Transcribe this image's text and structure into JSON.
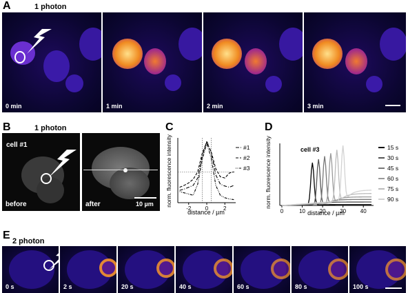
{
  "panels": {
    "A": {
      "letter": "A",
      "title": "1 photon",
      "times": [
        "0 min",
        "1 min",
        "2 min",
        "3 min"
      ]
    },
    "B": {
      "letter": "B",
      "title": "1 photon",
      "cell": "cell #1",
      "before": "before",
      "after": "after",
      "scale": "10 µm"
    },
    "C": {
      "letter": "C",
      "ylabel": "norm. fluorescence intensity",
      "xlabel": "distance / µm",
      "legend": [
        "#1",
        "#2",
        "#3"
      ]
    },
    "D": {
      "letter": "D",
      "ylabel": "norm. fluorescence intensity",
      "xlabel": "distance / µm",
      "cell": "cell #3",
      "legend": [
        "15 s",
        "30 s",
        "45 s",
        "60 s",
        "75 s",
        "90 s"
      ]
    },
    "E": {
      "letter": "E",
      "title": "2 photon",
      "times": [
        "0 s",
        "2 s",
        "20 s",
        "40 s",
        "60 s",
        "80 s",
        "100 s"
      ]
    }
  },
  "chart_data": [
    {
      "type": "line",
      "xlabel": "distance / µm",
      "ylabel": "norm. fluorescence intensity",
      "xticks": [
        -2,
        0,
        2
      ],
      "xlim": [
        -3.2,
        3.2
      ],
      "ylim": [
        0,
        105
      ],
      "series": [
        {
          "name": "#1",
          "x": [
            -3,
            -2.5,
            -2,
            -1.5,
            -1,
            -0.5,
            0,
            0.5,
            1,
            1.5,
            2,
            2.5,
            3
          ],
          "y": [
            20,
            22,
            25,
            28,
            40,
            75,
            100,
            80,
            45,
            30,
            27,
            25,
            28
          ]
        },
        {
          "name": "#2",
          "x": [
            -3,
            -2.5,
            -2,
            -1.5,
            -1,
            -0.5,
            0,
            0.5,
            1,
            1.5,
            2,
            2.5,
            3
          ],
          "y": [
            25,
            28,
            32,
            38,
            50,
            80,
            98,
            82,
            55,
            42,
            40,
            48,
            50
          ]
        },
        {
          "name": "#3",
          "x": [
            -3,
            -2.5,
            -2,
            -1.5,
            -1,
            -0.5,
            0,
            0.5,
            1,
            1.5,
            2,
            2.5,
            3
          ],
          "y": [
            18,
            16,
            14,
            12,
            30,
            70,
            96,
            72,
            28,
            12,
            8,
            6,
            5
          ]
        }
      ]
    },
    {
      "type": "line",
      "title": "cell #3",
      "xlabel": "distance / µm",
      "ylabel": "norm. fluorescence intensity",
      "xticks": [
        0,
        10,
        20,
        30,
        40
      ],
      "xlim": [
        -1,
        45
      ],
      "ylim": [
        0,
        145
      ],
      "series": [
        {
          "name": "15 s",
          "color": "#000000",
          "peak": 15,
          "height": 100,
          "base": 2
        },
        {
          "name": "30 s",
          "color": "#555555",
          "peak": 18,
          "height": 108,
          "base": 8
        },
        {
          "name": "45 s",
          "color": "#777777",
          "peak": 21,
          "height": 115,
          "base": 14
        },
        {
          "name": "60 s",
          "color": "#999999",
          "peak": 24,
          "height": 122,
          "base": 20
        },
        {
          "name": "75 s",
          "color": "#bbbbbb",
          "peak": 27,
          "height": 130,
          "base": 28
        },
        {
          "name": "90 s",
          "color": "#d2d2d2",
          "peak": 30,
          "height": 140,
          "base": 36
        }
      ]
    }
  ]
}
